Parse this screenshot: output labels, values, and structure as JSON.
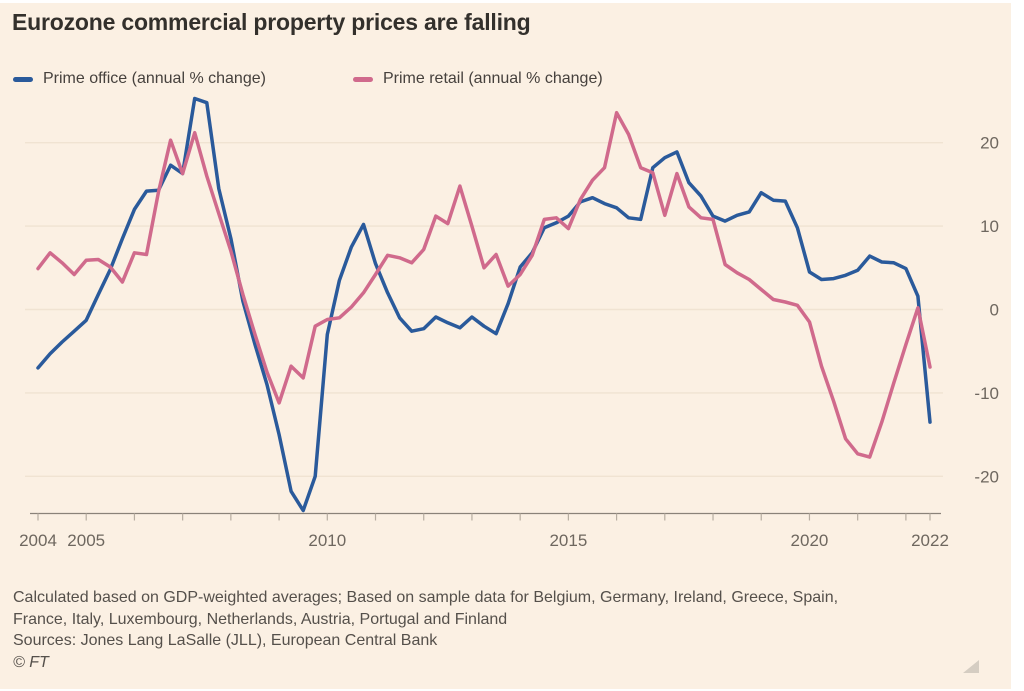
{
  "title": "Eurozone commercial property prices are falling",
  "legend": {
    "office_label": "Prime office (annual % change)",
    "retail_label": "Prime retail (annual % change)"
  },
  "chart_data": {
    "type": "line",
    "title": "Eurozone commercial property prices are falling",
    "xlabel": "",
    "ylabel": "annual % change",
    "x_start": 2004,
    "x_step_years": 0.25,
    "x_end": 2022.5,
    "ylim": [
      -26,
      28
    ],
    "grid": "horizontal",
    "legend_position": "top",
    "y_ticks": [
      20,
      10,
      0,
      -10,
      -20
    ],
    "x_labeled_years": [
      2004,
      2005,
      2010,
      2015,
      2020
    ],
    "x_end_label": "2022",
    "series": [
      {
        "name": "Prime office (annual % change)",
        "color": "#2a5a9b",
        "values": [
          -7.0,
          -5.3,
          -3.9,
          -2.6,
          -1.3,
          1.8,
          4.8,
          8.5,
          12.0,
          14.2,
          14.3,
          17.3,
          16.3,
          25.3,
          24.8,
          14.5,
          8.5,
          1.0,
          -4.2,
          -9.0,
          -15.0,
          -21.8,
          -24.1,
          -20.0,
          -3.0,
          3.5,
          7.5,
          10.2,
          5.5,
          2.0,
          -1.0,
          -2.6,
          -2.3,
          -0.9,
          -1.6,
          -2.2,
          -0.9,
          -2.0,
          -2.9,
          0.7,
          5.1,
          6.8,
          9.8,
          10.4,
          11.2,
          12.9,
          13.4,
          12.7,
          12.2,
          11.0,
          10.8,
          17.0,
          18.2,
          18.9,
          15.2,
          13.6,
          11.2,
          10.6,
          11.3,
          11.7,
          14.0,
          13.1,
          13.0,
          9.8,
          4.5,
          3.6,
          3.7,
          4.1,
          4.7,
          6.4,
          5.7,
          5.6,
          4.9,
          1.6,
          -13.5
        ]
      },
      {
        "name": "Prime retail (annual % change)",
        "color": "#d06a8c",
        "values": [
          4.9,
          6.8,
          5.6,
          4.2,
          5.9,
          6.0,
          5.1,
          3.3,
          6.8,
          6.6,
          14.1,
          20.3,
          16.3,
          21.2,
          16.0,
          11.5,
          7.0,
          1.8,
          -3.0,
          -7.5,
          -11.2,
          -6.8,
          -8.2,
          -2.0,
          -1.2,
          -1.0,
          0.3,
          2.0,
          4.2,
          6.5,
          6.2,
          5.6,
          7.2,
          11.2,
          10.3,
          14.8,
          10.0,
          5.0,
          6.6,
          2.8,
          4.2,
          6.5,
          10.8,
          11.0,
          9.7,
          13.2,
          15.5,
          17.0,
          23.6,
          21.0,
          17.0,
          16.4,
          11.3,
          16.3,
          12.3,
          11.0,
          10.8,
          5.4,
          4.4,
          3.6,
          2.4,
          1.2,
          0.9,
          0.5,
          -1.5,
          -6.8,
          -11.0,
          -15.5,
          -17.3,
          -17.7,
          -13.5,
          -8.8,
          -4.2,
          0.2,
          -6.9
        ]
      }
    ]
  },
  "footer": {
    "note_line1": "Calculated based on GDP-weighted averages; Based on sample data for Belgium, Germany, Ireland, Greece, Spain,",
    "note_line2": "France, Italy, Luxembourg, Netherlands, Austria, Portugal and Finland",
    "sources": "Sources: Jones Lang LaSalle (JLL), European Central Bank",
    "copyright": "© FT"
  },
  "colors": {
    "background": "#fbf0e3",
    "gridline": "#f0e3d2",
    "axis": "#8a8279",
    "tick": "#b7ada1",
    "axis_label": "#6e675f",
    "office_line": "#2a5a9b",
    "retail_line": "#d06a8c"
  }
}
